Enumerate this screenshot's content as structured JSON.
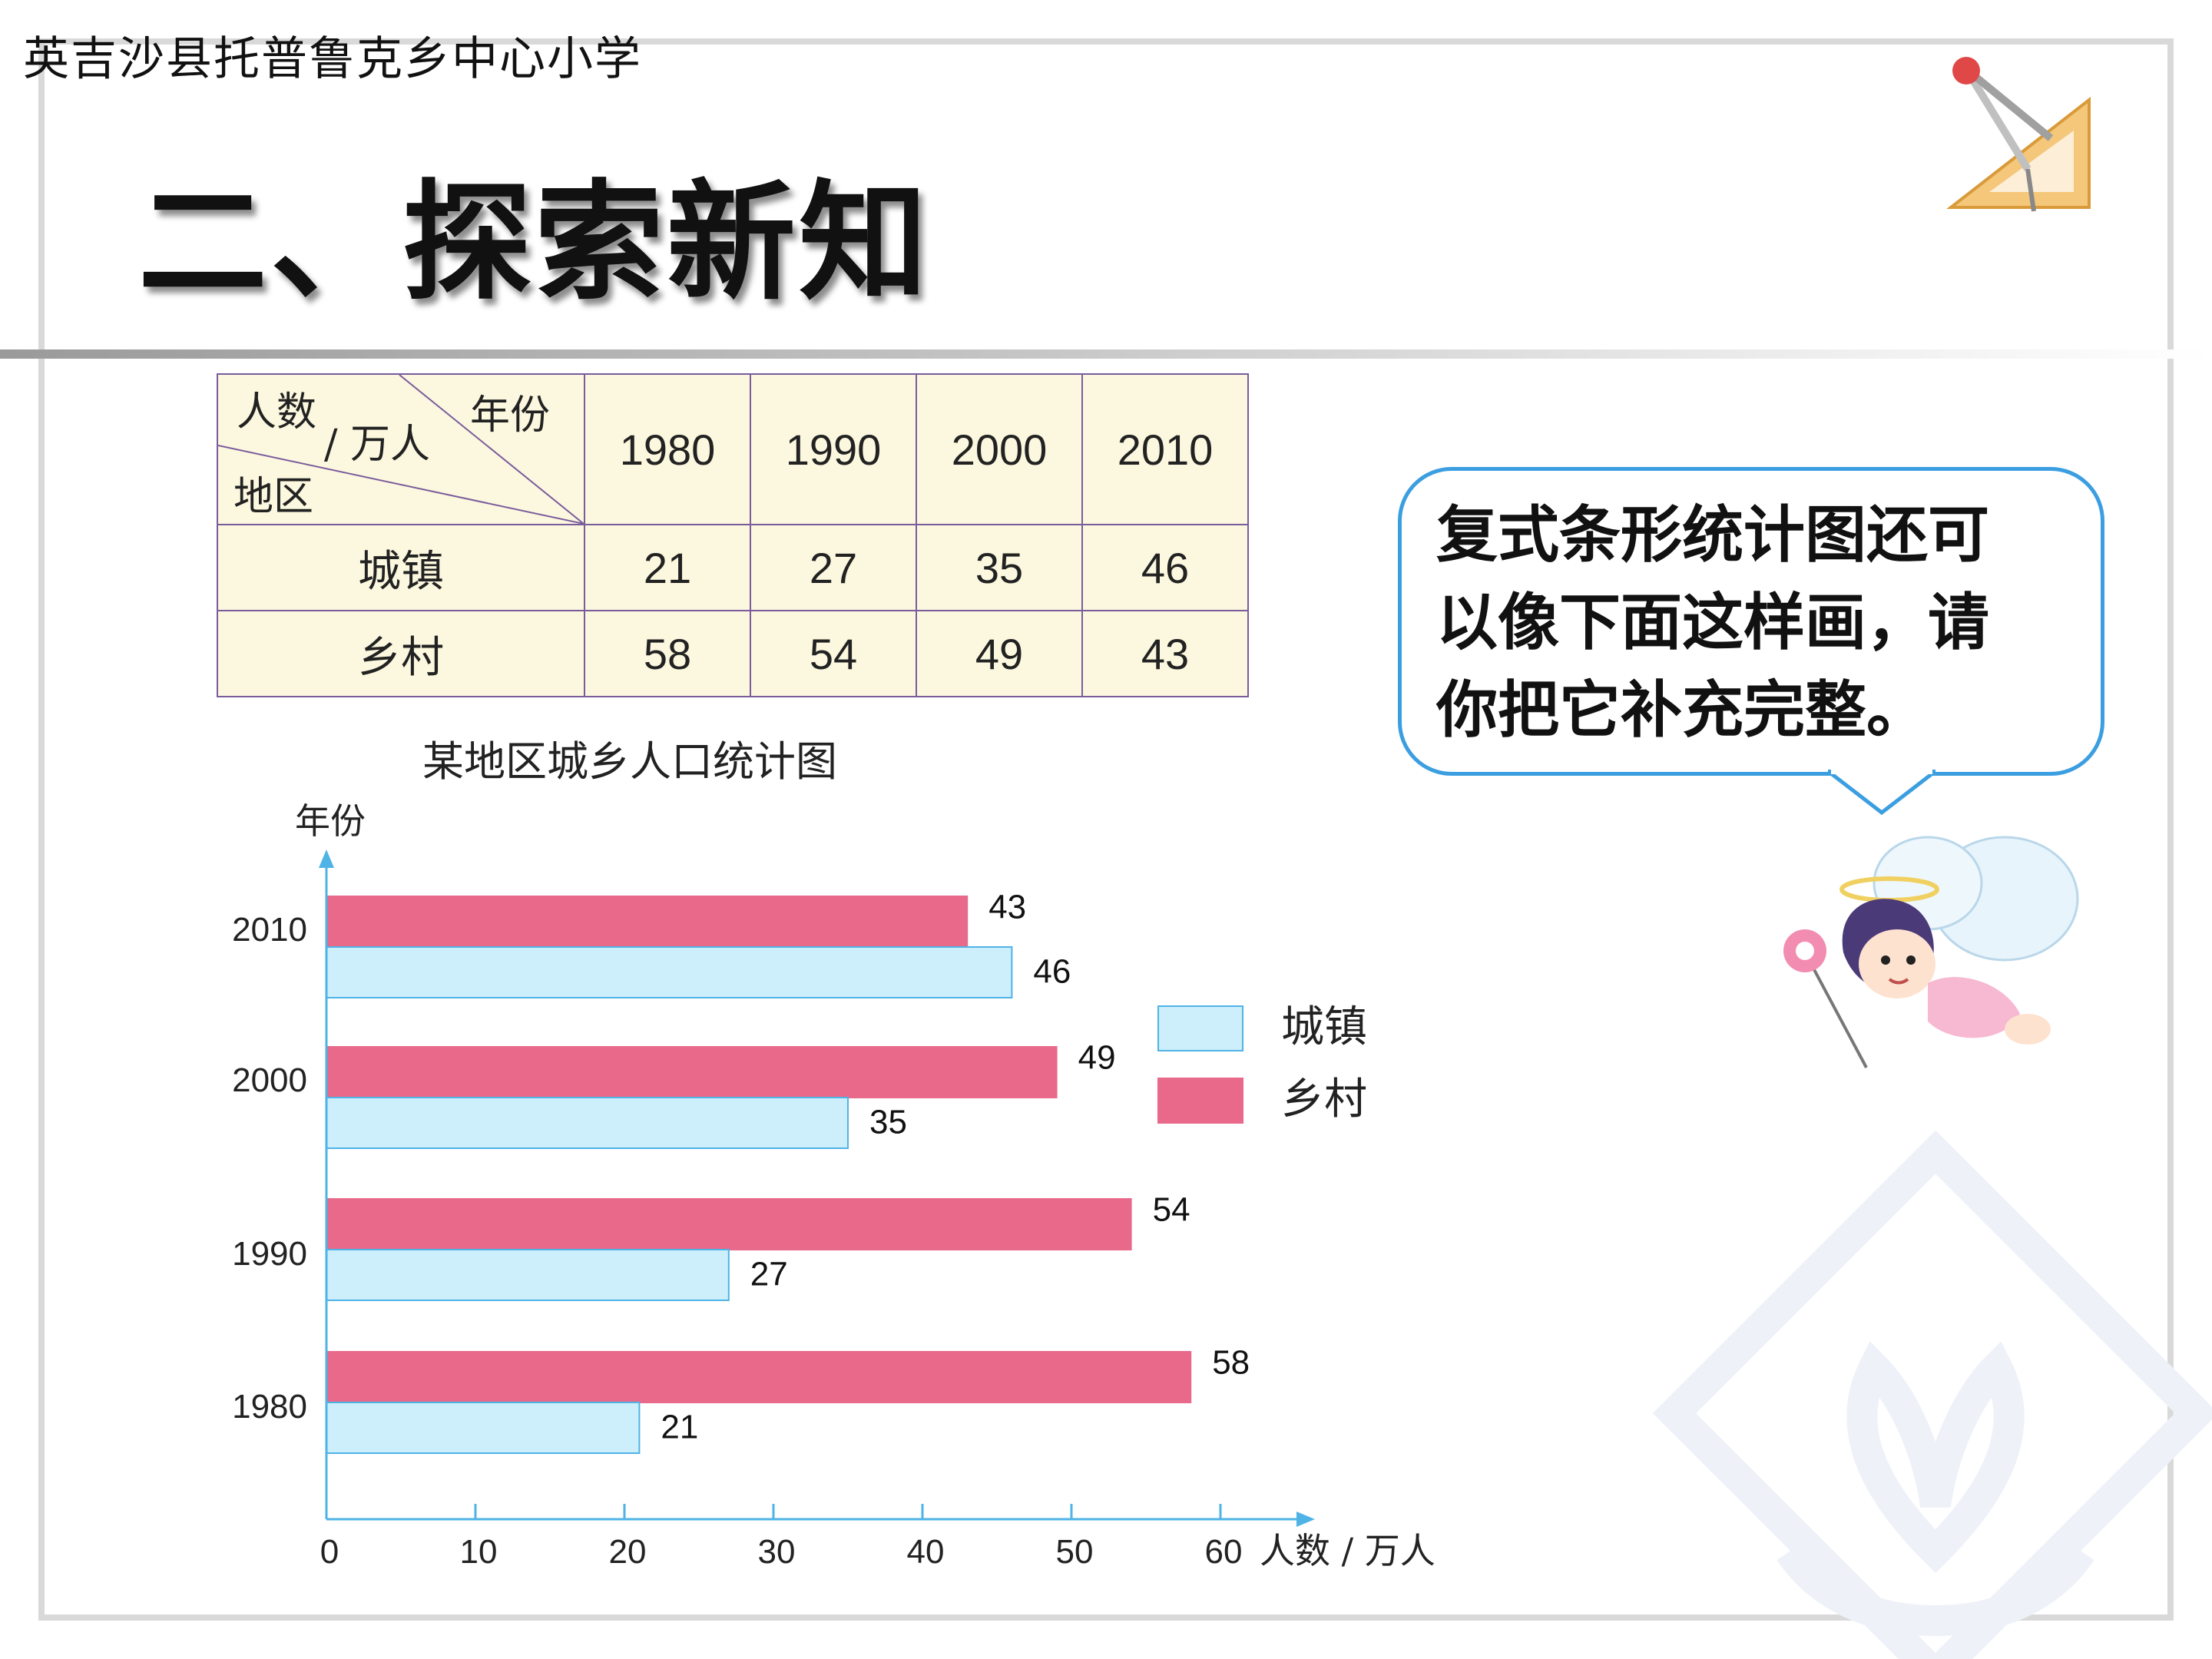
{
  "header": {
    "school_name": "英吉沙县托普鲁克乡中心小学",
    "title": "二、探索新知"
  },
  "table": {
    "corner": {
      "count_label": "人数",
      "unit_label": "/ 万人",
      "year_label": "年份",
      "region_label": "地区"
    },
    "years": [
      "1980",
      "1990",
      "2000",
      "2010"
    ],
    "rows": [
      {
        "label": "城镇",
        "values": [
          "21",
          "27",
          "35",
          "46"
        ]
      },
      {
        "label": "乡村",
        "values": [
          "58",
          "54",
          "49",
          "43"
        ]
      }
    ]
  },
  "bubble": {
    "lines": [
      "复式条形统计图还可",
      "以像下面这样画，请",
      "你把它补充完整。"
    ]
  },
  "chart_data": {
    "type": "bar",
    "orientation": "horizontal",
    "title": "某地区城乡人口统计图",
    "ylabel": "年份",
    "xlabel": "人数 / 万人",
    "categories": [
      "1980",
      "1990",
      "2000",
      "2010"
    ],
    "series": [
      {
        "name": "城镇",
        "values": [
          21,
          27,
          35,
          46
        ],
        "color": "#cdeefb",
        "stroke": "#4fb3e6"
      },
      {
        "name": "乡村",
        "values": [
          58,
          54,
          49,
          43
        ],
        "color": "#e8698a",
        "stroke": "#e8698a"
      }
    ],
    "xlim": [
      0,
      60
    ],
    "xticks": [
      "0",
      "10",
      "20",
      "30",
      "40",
      "50",
      "60"
    ],
    "legend": "right"
  },
  "colors": {
    "bubble_border": "#3b9ee0",
    "table_bg": "#fcf8df",
    "table_border": "#7a5c9c"
  }
}
